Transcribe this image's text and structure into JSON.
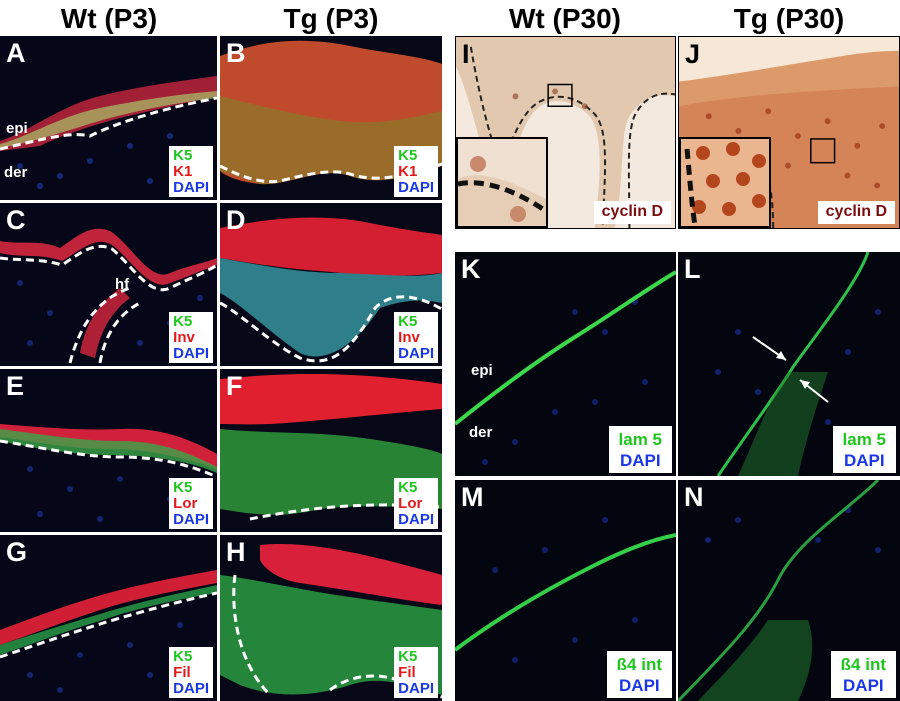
{
  "titles": {
    "wt_p3": "Wt (P3)",
    "tg_p3": "Tg (P3)",
    "wt_p30": "Wt (P30)",
    "tg_p30": "Tg (P30)"
  },
  "panels": {
    "A": {
      "letter": "A",
      "l1": "K5",
      "l2": "K1",
      "l3": "DAPI",
      "epi": "epi",
      "der": "der"
    },
    "B": {
      "letter": "B",
      "l1": "K5",
      "l2": "K1",
      "l3": "DAPI"
    },
    "C": {
      "letter": "C",
      "l1": "K5",
      "l2": "Inv",
      "l3": "DAPI",
      "hf": "hf"
    },
    "D": {
      "letter": "D",
      "l1": "K5",
      "l2": "Inv",
      "l3": "DAPI"
    },
    "E": {
      "letter": "E",
      "l1": "K5",
      "l2": "Lor",
      "l3": "DAPI"
    },
    "F": {
      "letter": "F",
      "l1": "K5",
      "l2": "Lor",
      "l3": "DAPI"
    },
    "G": {
      "letter": "G",
      "l1": "K5",
      "l2": "Fil",
      "l3": "DAPI"
    },
    "H": {
      "letter": "H",
      "l1": "K5",
      "l2": "Fil",
      "l3": "DAPI"
    },
    "I": {
      "letter": "I",
      "label": "cyclin D"
    },
    "J": {
      "letter": "J",
      "label": "cyclin D"
    },
    "K": {
      "letter": "K",
      "l1": "lam 5",
      "l2": "DAPI",
      "epi": "epi",
      "der": "der"
    },
    "L": {
      "letter": "L",
      "l1": "lam 5",
      "l2": "DAPI"
    },
    "M": {
      "letter": "M",
      "l1": "ß4 int",
      "l2": "DAPI"
    },
    "N": {
      "letter": "N",
      "l1": "ß4 int",
      "l2": "DAPI"
    }
  },
  "colors": {
    "green": "#1fc51f",
    "red": "#e3191b",
    "blue": "#1b38e6",
    "cyclin_label": "#7a0d0d"
  }
}
